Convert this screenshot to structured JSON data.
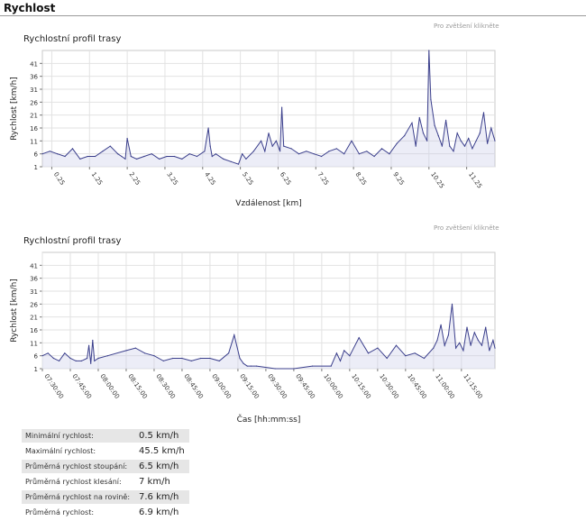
{
  "section": {
    "title": "Rychlost"
  },
  "zoom_hint": "Pro zvětšení klikněte",
  "colors": {
    "line": "#3b3f8c",
    "fill": "#c9cbe8",
    "grid": "#e2e2e2",
    "axis": "#7a7a7a"
  },
  "chart_data": [
    {
      "type": "area",
      "title": "Rychlostní profil trasy",
      "xlabel": "Vzdálenost [km]",
      "ylabel": "Rychlost [km/h]",
      "xlim": [
        0,
        12.0
      ],
      "ylim": [
        1,
        46
      ],
      "yticks": [
        1,
        6,
        11,
        16,
        21,
        26,
        31,
        36,
        41
      ],
      "xticks": [
        "0.25",
        "1.25",
        "2.25",
        "3.25",
        "4.25",
        "5.25",
        "6.25",
        "7.25",
        "8.25",
        "9.25",
        "10.25",
        "11.25"
      ],
      "xtick_values": [
        0.25,
        1.25,
        2.25,
        3.25,
        4.25,
        5.25,
        6.25,
        7.25,
        8.25,
        9.25,
        10.25,
        11.25
      ],
      "x": [
        0,
        0.2,
        0.4,
        0.6,
        0.8,
        1.0,
        1.2,
        1.4,
        1.6,
        1.8,
        2.0,
        2.1,
        2.2,
        2.25,
        2.35,
        2.5,
        2.7,
        2.9,
        3.1,
        3.3,
        3.5,
        3.7,
        3.9,
        4.1,
        4.3,
        4.4,
        4.45,
        4.5,
        4.6,
        4.8,
        5.0,
        5.2,
        5.3,
        5.4,
        5.6,
        5.8,
        5.9,
        6.0,
        6.1,
        6.2,
        6.3,
        6.35,
        6.4,
        6.6,
        6.8,
        7.0,
        7.2,
        7.4,
        7.6,
        7.8,
        8.0,
        8.2,
        8.4,
        8.6,
        8.8,
        9.0,
        9.2,
        9.4,
        9.6,
        9.8,
        9.9,
        10.0,
        10.1,
        10.2,
        10.25,
        10.3,
        10.4,
        10.5,
        10.6,
        10.7,
        10.8,
        10.9,
        11.0,
        11.1,
        11.2,
        11.3,
        11.4,
        11.5,
        11.6,
        11.7,
        11.8,
        11.9,
        12.0
      ],
      "values": [
        6,
        7,
        6,
        5,
        8,
        4,
        5,
        5,
        7,
        9,
        6,
        5,
        4,
        12,
        5,
        4,
        5,
        6,
        4,
        5,
        5,
        4,
        6,
        5,
        7,
        16,
        9,
        5,
        6,
        4,
        3,
        2,
        6,
        4,
        7,
        11,
        7,
        14,
        9,
        11,
        7,
        24,
        9,
        8,
        6,
        7,
        6,
        5,
        7,
        8,
        6,
        11,
        6,
        7,
        5,
        8,
        6,
        10,
        13,
        18,
        9,
        20,
        14,
        11,
        46,
        27,
        17,
        13,
        9,
        19,
        9,
        7,
        14,
        11,
        9,
        12,
        8,
        11,
        14,
        22,
        10,
        16,
        11
      ]
    },
    {
      "type": "area",
      "title": "Rychlostní profil trasy",
      "xlabel": "Čas  [hh:mm:ss]",
      "ylabel": "Rychlost [km/h]",
      "xlim": [
        0,
        243
      ],
      "ylim": [
        1,
        46
      ],
      "yticks": [
        1,
        6,
        11,
        16,
        21,
        26,
        31,
        36,
        41
      ],
      "xticks": [
        "07:30:00",
        "07:45:00",
        "08:00:00",
        "08:15:00",
        "08:30:00",
        "08:45:00",
        "09:00:00",
        "09:15:00",
        "09:30:00",
        "09:45:00",
        "10:00:00",
        "10:15:00",
        "10:30:00",
        "10:45:00",
        "11:00:00",
        "11:15:00"
      ],
      "xtick_values": [
        0,
        15,
        30,
        45,
        60,
        75,
        90,
        105,
        120,
        135,
        150,
        165,
        180,
        195,
        210,
        225
      ],
      "x": [
        0,
        3,
        6,
        9,
        12,
        15,
        18,
        21,
        24,
        25,
        26,
        27,
        28,
        30,
        35,
        45,
        50,
        55,
        60,
        65,
        70,
        75,
        80,
        85,
        90,
        95,
        100,
        103,
        106,
        108,
        110,
        112,
        115,
        125,
        135,
        145,
        155,
        158,
        160,
        162,
        165,
        170,
        175,
        180,
        185,
        190,
        195,
        200,
        205,
        210,
        212,
        214,
        216,
        218,
        220,
        222,
        224,
        226,
        228,
        230,
        232,
        234,
        236,
        238,
        240,
        242,
        243
      ],
      "values": [
        6,
        7,
        5,
        4,
        7,
        5,
        4,
        4,
        5,
        10,
        3,
        12,
        4,
        5,
        6,
        8,
        9,
        7,
        6,
        4,
        5,
        5,
        4,
        5,
        5,
        4,
        7,
        14,
        5,
        3,
        2,
        2,
        2,
        1,
        1,
        2,
        2,
        7,
        4,
        8,
        6,
        13,
        7,
        9,
        5,
        10,
        6,
        7,
        5,
        9,
        12,
        18,
        10,
        14,
        26,
        9,
        11,
        8,
        17,
        10,
        15,
        12,
        10,
        17,
        8,
        12,
        9
      ]
    }
  ],
  "stats": [
    {
      "label": "Minimální rychlost:",
      "value": "0.5 km/h"
    },
    {
      "label": "Maximální rychlost:",
      "value": "45.5 km/h"
    },
    {
      "label": "Průměrná rychlost stoupání:",
      "value": "6.5 km/h"
    },
    {
      "label": "Průměrná rychlost klesání:",
      "value": "7 km/h"
    },
    {
      "label": "Průměrná rychlost na rovině:",
      "value": "7.6 km/h"
    },
    {
      "label": "Průměrná rychlost:",
      "value": "6.9 km/h"
    }
  ]
}
